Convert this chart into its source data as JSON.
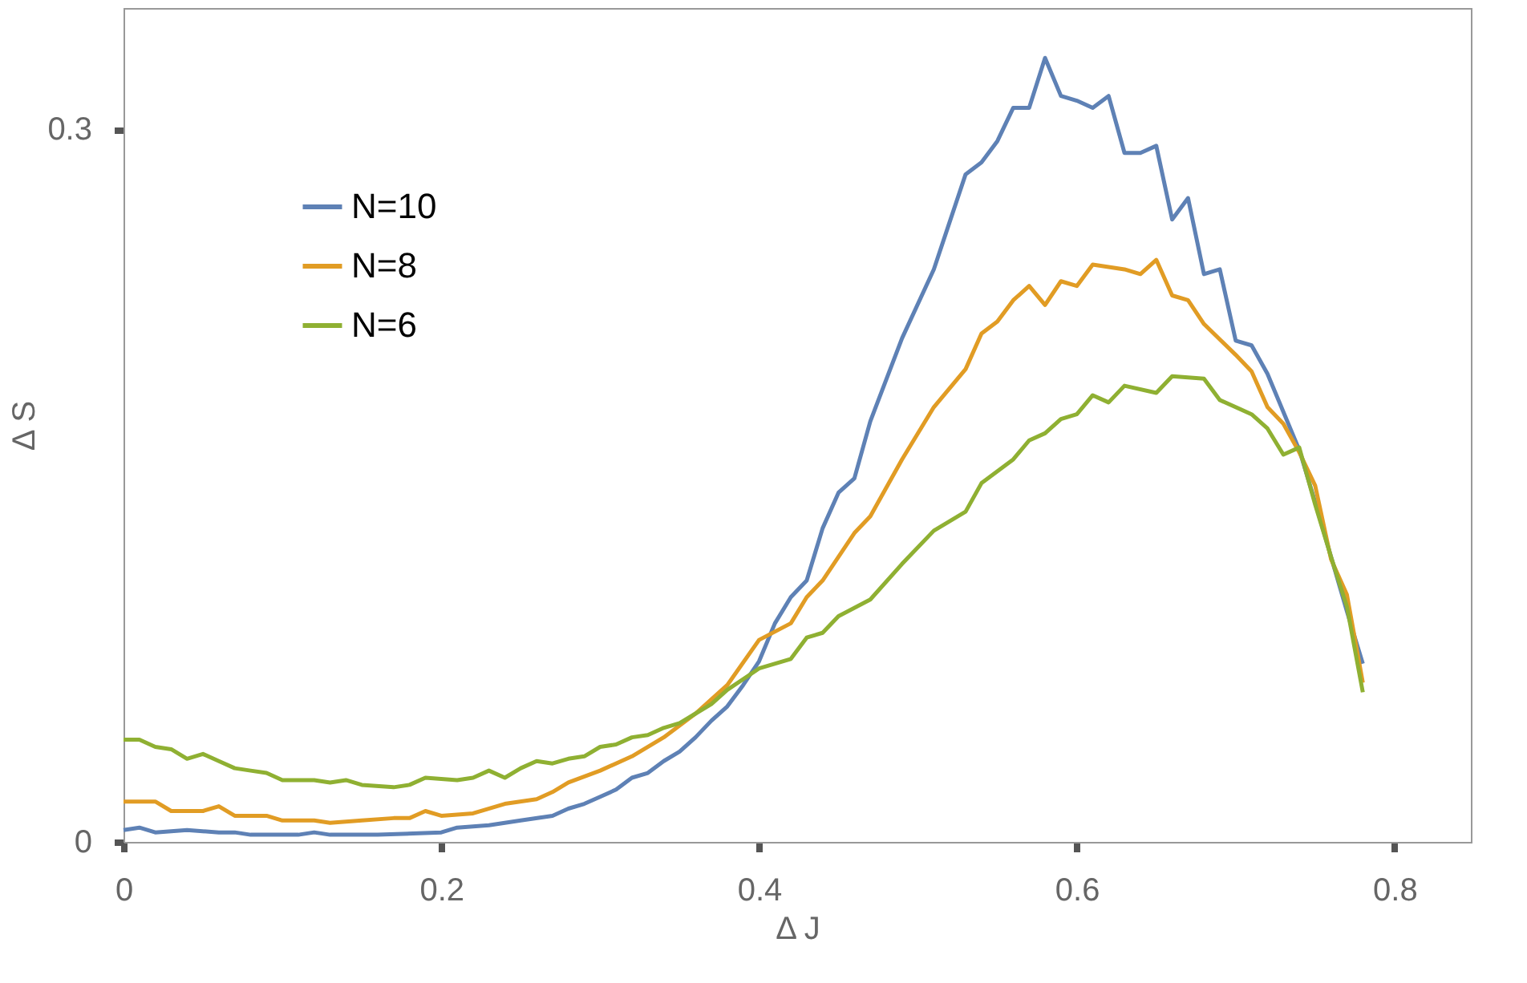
{
  "chart_data": {
    "type": "line",
    "xlabel": "Δ J",
    "ylabel": "Δ S",
    "xlim": [
      0,
      0.848
    ],
    "ylim": [
      0,
      0.351
    ],
    "xticks": [
      0,
      0.2,
      0.4,
      0.6,
      0.8
    ],
    "yticks": [
      0,
      0.3
    ],
    "grid": false,
    "legend": "top left",
    "marker": "none",
    "line_style": "solid",
    "series": [
      {
        "name": "N=10",
        "color": "#5e81b5",
        "x": [
          0,
          0.01,
          0.02,
          0.04,
          0.06,
          0.07,
          0.08,
          0.1,
          0.11,
          0.12,
          0.13,
          0.16,
          0.2,
          0.21,
          0.23,
          0.25,
          0.27,
          0.28,
          0.29,
          0.3,
          0.31,
          0.32,
          0.33,
          0.34,
          0.35,
          0.36,
          0.37,
          0.38,
          0.39,
          0.4,
          0.41,
          0.42,
          0.43,
          0.44,
          0.45,
          0.46,
          0.47,
          0.49,
          0.51,
          0.52,
          0.53,
          0.54,
          0.55,
          0.56,
          0.57,
          0.58,
          0.59,
          0.6,
          0.61,
          0.62,
          0.63,
          0.64,
          0.65,
          0.66,
          0.67,
          0.68,
          0.69,
          0.7,
          0.71,
          0.72,
          0.73,
          0.74,
          0.75,
          0.76,
          0.77,
          0.78
        ],
        "values": [
          0.005,
          0.006,
          0.004,
          0.005,
          0.004,
          0.004,
          0.003,
          0.003,
          0.003,
          0.004,
          0.003,
          0.003,
          0.004,
          0.006,
          0.007,
          0.009,
          0.011,
          0.014,
          0.016,
          0.019,
          0.022,
          0.027,
          0.029,
          0.034,
          0.038,
          0.044,
          0.051,
          0.057,
          0.066,
          0.076,
          0.092,
          0.103,
          0.11,
          0.132,
          0.147,
          0.153,
          0.177,
          0.212,
          0.241,
          0.261,
          0.281,
          0.286,
          0.295,
          0.309,
          0.309,
          0.33,
          0.314,
          0.312,
          0.309,
          0.314,
          0.29,
          0.29,
          0.293,
          0.262,
          0.271,
          0.239,
          0.241,
          0.211,
          0.209,
          0.197,
          0.181,
          0.165,
          0.143,
          0.12,
          0.097,
          0.075
        ]
      },
      {
        "name": "N=8",
        "color": "#e19c24",
        "x": [
          0,
          0.02,
          0.03,
          0.05,
          0.06,
          0.07,
          0.09,
          0.1,
          0.12,
          0.13,
          0.15,
          0.17,
          0.18,
          0.19,
          0.2,
          0.22,
          0.24,
          0.26,
          0.27,
          0.28,
          0.3,
          0.32,
          0.34,
          0.36,
          0.38,
          0.4,
          0.42,
          0.43,
          0.44,
          0.46,
          0.47,
          0.49,
          0.51,
          0.53,
          0.54,
          0.55,
          0.56,
          0.57,
          0.58,
          0.59,
          0.6,
          0.61,
          0.63,
          0.64,
          0.65,
          0.66,
          0.67,
          0.68,
          0.7,
          0.71,
          0.72,
          0.73,
          0.74,
          0.75,
          0.76,
          0.77,
          0.78
        ],
        "values": [
          0.017,
          0.017,
          0.013,
          0.013,
          0.015,
          0.011,
          0.011,
          0.009,
          0.009,
          0.008,
          0.009,
          0.01,
          0.01,
          0.013,
          0.011,
          0.012,
          0.016,
          0.018,
          0.021,
          0.025,
          0.03,
          0.036,
          0.044,
          0.054,
          0.066,
          0.085,
          0.092,
          0.103,
          0.11,
          0.13,
          0.137,
          0.161,
          0.183,
          0.199,
          0.214,
          0.219,
          0.228,
          0.234,
          0.226,
          0.236,
          0.234,
          0.243,
          0.241,
          0.239,
          0.245,
          0.23,
          0.228,
          0.218,
          0.205,
          0.198,
          0.183,
          0.176,
          0.164,
          0.15,
          0.119,
          0.104,
          0.067
        ]
      },
      {
        "name": "N=6",
        "color": "#8fb032",
        "x": [
          0,
          0.01,
          0.02,
          0.03,
          0.04,
          0.05,
          0.06,
          0.07,
          0.08,
          0.09,
          0.1,
          0.12,
          0.13,
          0.14,
          0.15,
          0.17,
          0.18,
          0.19,
          0.21,
          0.22,
          0.23,
          0.24,
          0.25,
          0.26,
          0.27,
          0.28,
          0.29,
          0.3,
          0.31,
          0.32,
          0.33,
          0.34,
          0.35,
          0.36,
          0.37,
          0.38,
          0.4,
          0.42,
          0.43,
          0.44,
          0.45,
          0.47,
          0.49,
          0.51,
          0.53,
          0.54,
          0.56,
          0.57,
          0.58,
          0.59,
          0.6,
          0.61,
          0.62,
          0.63,
          0.65,
          0.66,
          0.68,
          0.69,
          0.71,
          0.72,
          0.73,
          0.74,
          0.75,
          0.76,
          0.77,
          0.78
        ],
        "values": [
          0.043,
          0.043,
          0.04,
          0.039,
          0.035,
          0.037,
          0.034,
          0.031,
          0.03,
          0.029,
          0.026,
          0.026,
          0.025,
          0.026,
          0.024,
          0.023,
          0.024,
          0.027,
          0.026,
          0.027,
          0.03,
          0.027,
          0.031,
          0.034,
          0.033,
          0.035,
          0.036,
          0.04,
          0.041,
          0.044,
          0.045,
          0.048,
          0.05,
          0.054,
          0.058,
          0.064,
          0.073,
          0.077,
          0.086,
          0.088,
          0.095,
          0.102,
          0.117,
          0.131,
          0.139,
          0.151,
          0.161,
          0.169,
          0.172,
          0.178,
          0.18,
          0.188,
          0.185,
          0.192,
          0.189,
          0.196,
          0.195,
          0.186,
          0.18,
          0.174,
          0.163,
          0.166,
          0.142,
          0.12,
          0.099,
          0.063
        ]
      }
    ]
  }
}
